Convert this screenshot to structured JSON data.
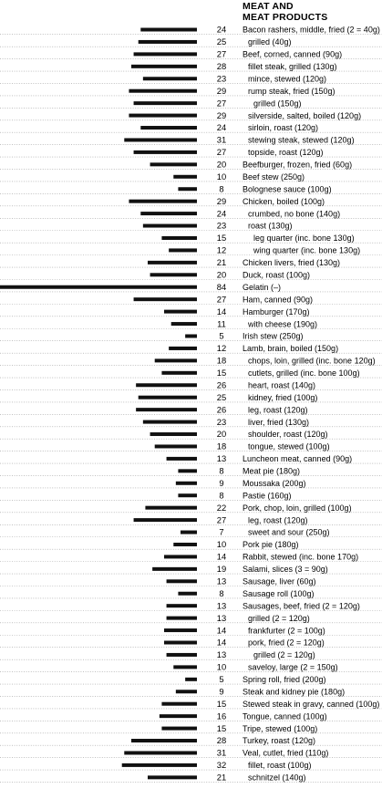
{
  "chart_data": {
    "type": "bar",
    "orientation": "horizontal",
    "title": [
      "MEAT AND",
      "MEAT PRODUCTS"
    ],
    "grid": false,
    "bar_color": "#111111",
    "dotted_rule_color": "#9a9a9a",
    "rows": [
      {
        "label": "Bacon rashers, middle, fried (2 = 40g)",
        "value": 24,
        "indent": 0
      },
      {
        "label": "grilled (40g)",
        "value": 25,
        "indent": 1
      },
      {
        "label": "Beef, corned, canned (90g)",
        "value": 27,
        "indent": 0
      },
      {
        "label": "fillet steak, grilled (130g)",
        "value": 28,
        "indent": 1
      },
      {
        "label": "mince, stewed (120g)",
        "value": 23,
        "indent": 1
      },
      {
        "label": "rump steak, fried (150g)",
        "value": 29,
        "indent": 1
      },
      {
        "label": "grilled (150g)",
        "value": 27,
        "indent": 2
      },
      {
        "label": "silverside, salted, boiled (120g)",
        "value": 29,
        "indent": 1
      },
      {
        "label": "sirloin, roast (120g)",
        "value": 24,
        "indent": 1
      },
      {
        "label": "stewing steak, stewed (120g)",
        "value": 31,
        "indent": 1
      },
      {
        "label": "topside, roast (120g)",
        "value": 27,
        "indent": 1
      },
      {
        "label": "Beefburger, frozen, fried (60g)",
        "value": 20,
        "indent": 0
      },
      {
        "label": "Beef stew (250g)",
        "value": 10,
        "indent": 0
      },
      {
        "label": "Bolognese sauce (100g)",
        "value": 8,
        "indent": 0
      },
      {
        "label": "Chicken, boiled (100g)",
        "value": 29,
        "indent": 0
      },
      {
        "label": "crumbed, no bone (140g)",
        "value": 24,
        "indent": 1
      },
      {
        "label": "roast (130g)",
        "value": 23,
        "indent": 1
      },
      {
        "label": "leg quarter (inc. bone 130g)",
        "value": 15,
        "indent": 2
      },
      {
        "label": "wing quarter (inc. bone 130g)",
        "value": 12,
        "indent": 2
      },
      {
        "label": "Chicken livers, fried (130g)",
        "value": 21,
        "indent": 0
      },
      {
        "label": "Duck, roast (100g)",
        "value": 20,
        "indent": 0
      },
      {
        "label": "Gelatin (–)",
        "value": 84,
        "indent": 0
      },
      {
        "label": "Ham, canned (90g)",
        "value": 27,
        "indent": 0
      },
      {
        "label": "Hamburger (170g)",
        "value": 14,
        "indent": 0
      },
      {
        "label": "with cheese (190g)",
        "value": 11,
        "indent": 1
      },
      {
        "label": "Irish stew (250g)",
        "value": 5,
        "indent": 0
      },
      {
        "label": "Lamb, brain, boiled (150g)",
        "value": 12,
        "indent": 0
      },
      {
        "label": "chops, loin, grilled (inc. bone 120g)",
        "value": 18,
        "indent": 1
      },
      {
        "label": "cutlets, grilled (inc. bone 100g)",
        "value": 15,
        "indent": 1
      },
      {
        "label": "heart, roast (140g)",
        "value": 26,
        "indent": 1
      },
      {
        "label": "kidney, fried (100g)",
        "value": 25,
        "indent": 1
      },
      {
        "label": "leg, roast (120g)",
        "value": 26,
        "indent": 1
      },
      {
        "label": "liver, fried (130g)",
        "value": 23,
        "indent": 1
      },
      {
        "label": "shoulder, roast (120g)",
        "value": 20,
        "indent": 1
      },
      {
        "label": "tongue, stewed (100g)",
        "value": 18,
        "indent": 1
      },
      {
        "label": "Luncheon meat, canned (90g)",
        "value": 13,
        "indent": 0
      },
      {
        "label": "Meat pie (180g)",
        "value": 8,
        "indent": 0
      },
      {
        "label": "Moussaka (200g)",
        "value": 9,
        "indent": 0
      },
      {
        "label": "Pastie (160g)",
        "value": 8,
        "indent": 0
      },
      {
        "label": "Pork, chop, loin, grilled (100g)",
        "value": 22,
        "indent": 0
      },
      {
        "label": "leg, roast (120g)",
        "value": 27,
        "indent": 1
      },
      {
        "label": "sweet and sour (250g)",
        "value": 7,
        "indent": 1
      },
      {
        "label": "Pork pie (180g)",
        "value": 10,
        "indent": 0
      },
      {
        "label": "Rabbit, stewed (inc. bone 170g)",
        "value": 14,
        "indent": 0
      },
      {
        "label": "Salami, slices (3 = 90g)",
        "value": 19,
        "indent": 0
      },
      {
        "label": "Sausage, liver (60g)",
        "value": 13,
        "indent": 0
      },
      {
        "label": "Sausage roll (100g)",
        "value": 8,
        "indent": 0
      },
      {
        "label": "Sausages, beef, fried (2 = 120g)",
        "value": 13,
        "indent": 0
      },
      {
        "label": "grilled (2 = 120g)",
        "value": 13,
        "indent": 1
      },
      {
        "label": "frankfurter (2 = 100g)",
        "value": 14,
        "indent": 1
      },
      {
        "label": "pork, fried (2 = 120g)",
        "value": 14,
        "indent": 1
      },
      {
        "label": "grilled (2 = 120g)",
        "value": 13,
        "indent": 2
      },
      {
        "label": "saveloy, large (2 = 150g)",
        "value": 10,
        "indent": 1
      },
      {
        "label": "Spring roll, fried (200g)",
        "value": 5,
        "indent": 0
      },
      {
        "label": "Steak and kidney pie (180g)",
        "value": 9,
        "indent": 0
      },
      {
        "label": "Stewed steak in gravy, canned (100g)",
        "value": 15,
        "indent": 0
      },
      {
        "label": "Tongue, canned (100g)",
        "value": 16,
        "indent": 0
      },
      {
        "label": "Tripe, stewed (100g)",
        "value": 15,
        "indent": 0
      },
      {
        "label": "Turkey, roast (120g)",
        "value": 28,
        "indent": 0
      },
      {
        "label": "Veal, cutlet, fried (110g)",
        "value": 31,
        "indent": 0
      },
      {
        "label": "fillet, roast (100g)",
        "value": 32,
        "indent": 1
      },
      {
        "label": "schnitzel (140g)",
        "value": 21,
        "indent": 1
      }
    ]
  }
}
